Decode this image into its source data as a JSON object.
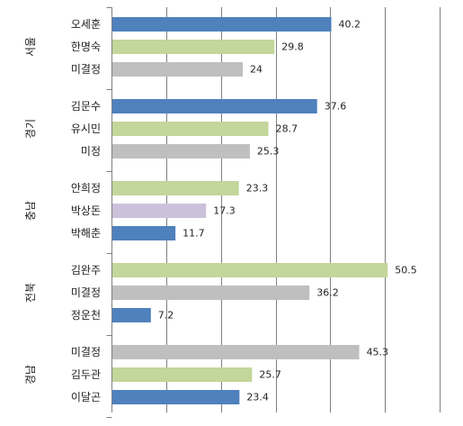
{
  "chart_data": {
    "type": "bar",
    "orientation": "horizontal",
    "xlim": [
      0,
      60
    ],
    "grid": true,
    "colors": {
      "blue": "#4f81bd",
      "green": "#c3d69b",
      "gray": "#bfbfbf",
      "purple": "#ccc1da"
    },
    "groups": [
      {
        "region": "서울",
        "bars": [
          {
            "name": "오세훈",
            "value": 40.2,
            "label": "40.2",
            "color": "blue"
          },
          {
            "name": "한명숙",
            "value": 29.8,
            "label": "29.8",
            "color": "green"
          },
          {
            "name": "미결정",
            "value": 24,
            "label": "24",
            "color": "gray"
          }
        ]
      },
      {
        "region": "경기",
        "bars": [
          {
            "name": "김문수",
            "value": 37.6,
            "label": "37.6",
            "color": "blue"
          },
          {
            "name": "유시민",
            "value": 28.7,
            "label": "28.7",
            "color": "green"
          },
          {
            "name": "미정",
            "value": 25.3,
            "label": "25.3",
            "color": "gray"
          }
        ]
      },
      {
        "region": "충남",
        "bars": [
          {
            "name": "안희정",
            "value": 23.3,
            "label": "23.3",
            "color": "green"
          },
          {
            "name": "박상돈",
            "value": 17.3,
            "label": "17.3",
            "color": "purple"
          },
          {
            "name": "박해춘",
            "value": 11.7,
            "label": "11.7",
            "color": "blue"
          }
        ]
      },
      {
        "region": "전북",
        "bars": [
          {
            "name": "김완주",
            "value": 50.5,
            "label": "50.5",
            "color": "green"
          },
          {
            "name": "미결정",
            "value": 36.2,
            "label": "36.2",
            "color": "gray"
          },
          {
            "name": "정운천",
            "value": 7.2,
            "label": "7.2",
            "color": "blue"
          }
        ]
      },
      {
        "region": "경남",
        "bars": [
          {
            "name": "미결정",
            "value": 45.3,
            "label": "45.3",
            "color": "gray"
          },
          {
            "name": "김두관",
            "value": 25.7,
            "label": "25.7",
            "color": "green"
          },
          {
            "name": "이달곤",
            "value": 23.4,
            "label": "23.4",
            "color": "blue"
          }
        ]
      }
    ]
  }
}
